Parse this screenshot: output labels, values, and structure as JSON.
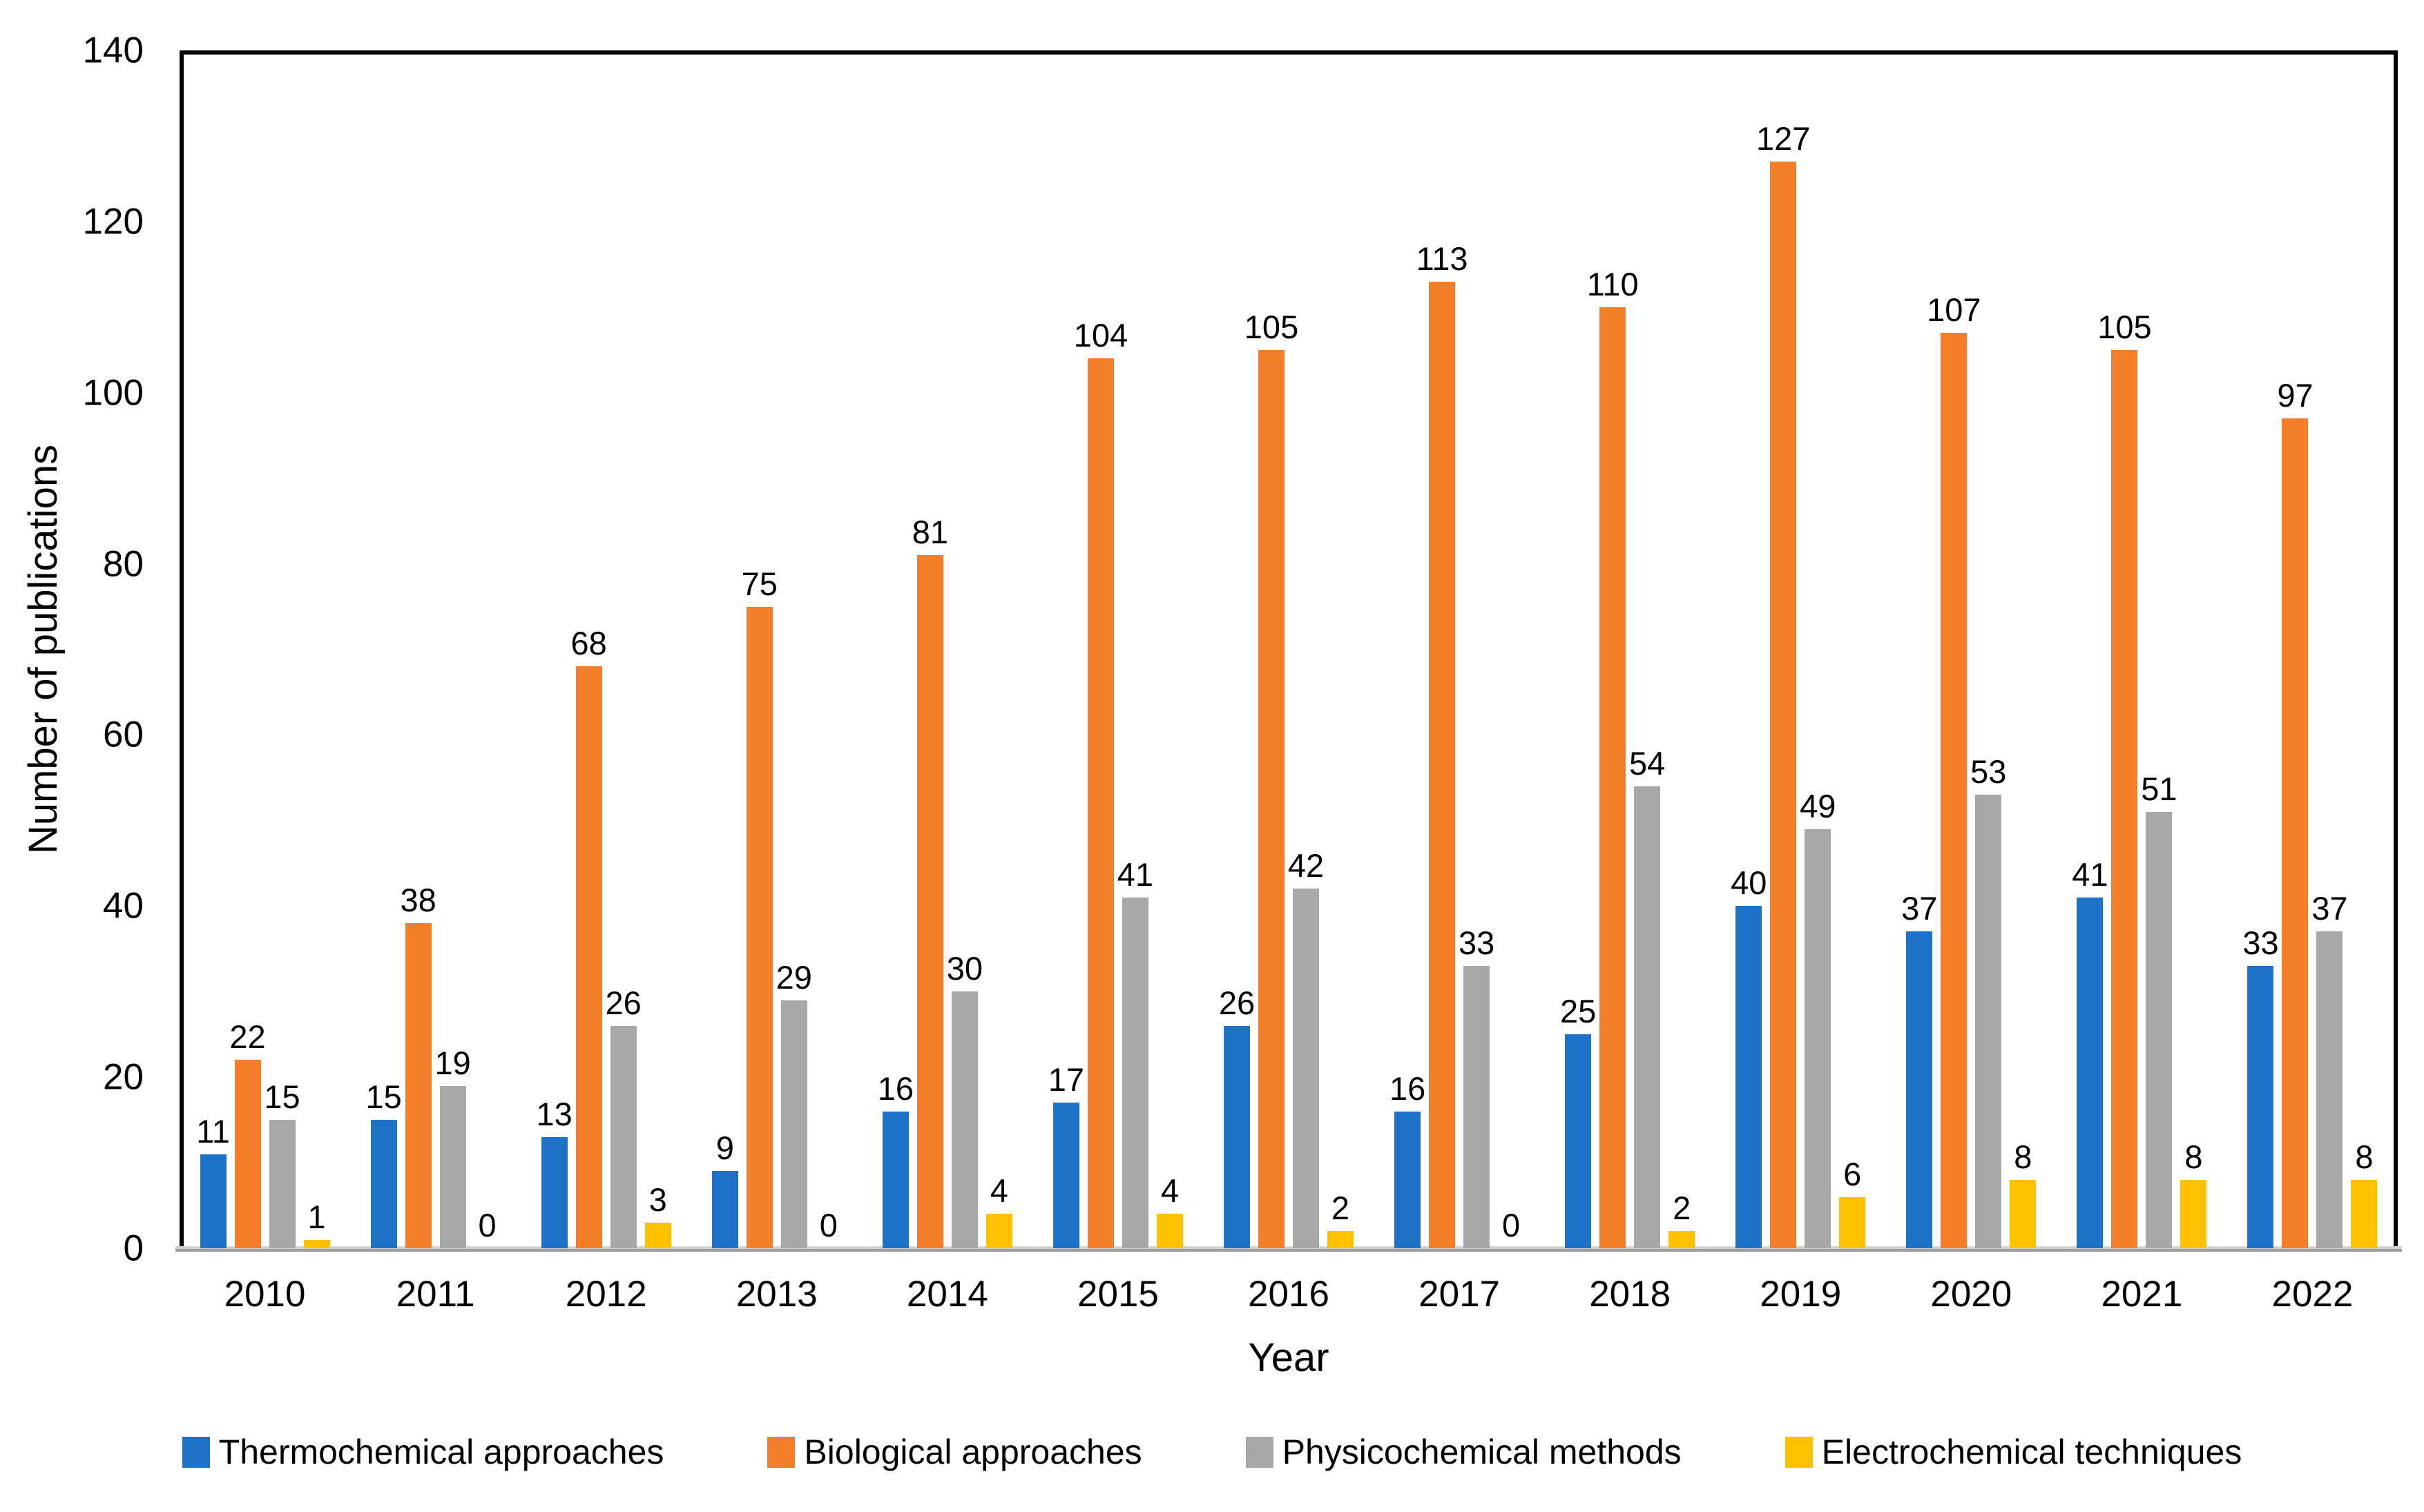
{
  "chart_data": {
    "type": "bar",
    "title": "",
    "xlabel": "Year",
    "ylabel": "Number of publications",
    "ylim": [
      0,
      140
    ],
    "yticks": [
      0,
      20,
      40,
      60,
      80,
      100,
      120,
      140
    ],
    "grid": false,
    "legend_position": "bottom",
    "bar_labels_shown": true,
    "axis_border_color": "#000000",
    "baseline_color": "#a6a6a6",
    "categories": [
      "2010",
      "2011",
      "2012",
      "2013",
      "2014",
      "2015",
      "2016",
      "2017",
      "2018",
      "2019",
      "2020",
      "2021",
      "2022"
    ],
    "series": [
      {
        "name": "Thermochemical approaches",
        "color": "#1e73c8",
        "values": [
          11,
          15,
          13,
          9,
          16,
          17,
          26,
          16,
          25,
          40,
          37,
          41,
          33
        ]
      },
      {
        "name": "Biological approaches",
        "color": "#f57e2a",
        "values": [
          22,
          38,
          68,
          75,
          81,
          104,
          105,
          113,
          110,
          127,
          107,
          105,
          97
        ]
      },
      {
        "name": "Physicochemical methods",
        "color": "#a8a8a8",
        "values": [
          15,
          19,
          26,
          29,
          30,
          41,
          42,
          33,
          54,
          49,
          53,
          51,
          37
        ]
      },
      {
        "name": "Electrochemical techniques",
        "color": "#ffc000",
        "values": [
          1,
          0,
          3,
          0,
          4,
          4,
          2,
          0,
          2,
          6,
          8,
          8,
          8
        ]
      }
    ]
  }
}
